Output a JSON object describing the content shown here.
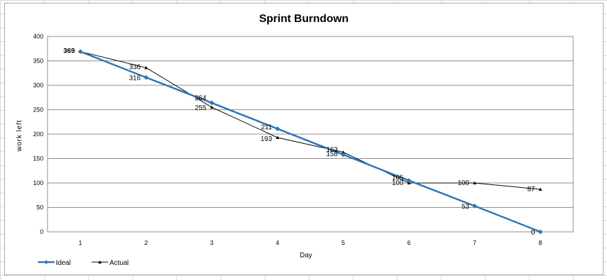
{
  "chart_data": {
    "type": "line",
    "title": "Sprint Burndown",
    "xlabel": "Day",
    "ylabel": "work left",
    "x": [
      1,
      2,
      3,
      4,
      5,
      6,
      7,
      8
    ],
    "ylim": [
      0,
      400
    ],
    "yticks": [
      0,
      50,
      100,
      150,
      200,
      250,
      300,
      350,
      400
    ],
    "grid": true,
    "legend_position": "bottom-left",
    "series": [
      {
        "name": "Ideal",
        "color": "#2e75b6",
        "marker": "diamond",
        "values": [
          369,
          316,
          264,
          211,
          158,
          105,
          53,
          0
        ],
        "labels": [
          "369",
          "316",
          "264",
          "211",
          "158",
          "105",
          "53",
          "0"
        ]
      },
      {
        "name": "Actual",
        "color": "#000000",
        "marker": "triangle",
        "values": [
          369,
          336,
          255,
          193,
          163,
          100,
          100,
          87
        ],
        "labels": [
          "369",
          "336",
          "255",
          "193",
          "163",
          "100",
          "100",
          "87"
        ]
      }
    ]
  }
}
